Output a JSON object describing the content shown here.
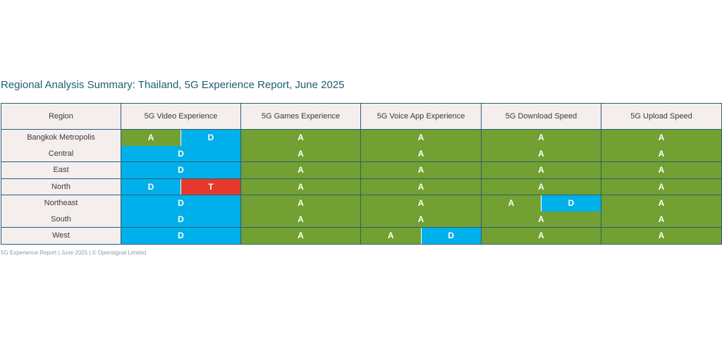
{
  "title": "Regional Analysis Summary: Thailand, 5G Experience Report, June 2025",
  "colors": {
    "A": "#72a032",
    "D": "#00b0ea",
    "T": "#e5392c"
  },
  "headers": [
    "Region",
    "5G Video Experience",
    "5G Games Experience",
    "5G Voice App Experience",
    "5G Download Speed",
    "5G Upload Speed"
  ],
  "rows": [
    {
      "region": "Bangkok Metropolis",
      "cells": [
        [
          "A",
          "D"
        ],
        [
          "A"
        ],
        [
          "A"
        ],
        [
          "A"
        ],
        [
          "A"
        ]
      ]
    },
    {
      "region": "Central",
      "cells": [
        [
          "D"
        ],
        [
          "A"
        ],
        [
          "A"
        ],
        [
          "A"
        ],
        [
          "A"
        ]
      ]
    },
    {
      "region": "East",
      "cells": [
        [
          "D"
        ],
        [
          "A"
        ],
        [
          "A"
        ],
        [
          "A"
        ],
        [
          "A"
        ]
      ]
    },
    {
      "region": "North",
      "cells": [
        [
          "D",
          "T"
        ],
        [
          "A"
        ],
        [
          "A"
        ],
        [
          "A"
        ],
        [
          "A"
        ]
      ]
    },
    {
      "region": "Northeast",
      "cells": [
        [
          "D"
        ],
        [
          "A"
        ],
        [
          "A"
        ],
        [
          "A",
          "D"
        ],
        [
          "A"
        ]
      ]
    },
    {
      "region": "South",
      "cells": [
        [
          "D"
        ],
        [
          "A"
        ],
        [
          "A"
        ],
        [
          "A"
        ],
        [
          "A"
        ]
      ]
    },
    {
      "region": "West",
      "cells": [
        [
          "D"
        ],
        [
          "A"
        ],
        [
          "A",
          "D"
        ],
        [
          "A"
        ],
        [
          "A"
        ]
      ]
    }
  ],
  "footer": "5G Experience Report | June 2025 | © Opensignal Limited"
}
